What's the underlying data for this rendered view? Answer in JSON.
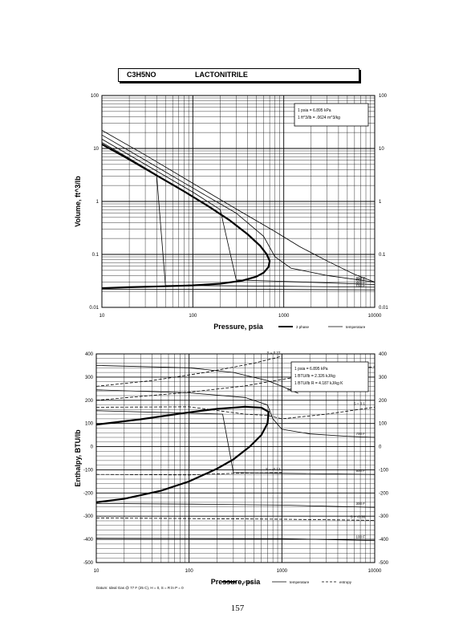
{
  "header": {
    "formula": "C3H5NO",
    "name": "LACTONITRILE"
  },
  "page_number": "157",
  "chart_data": [
    {
      "type": "line",
      "title": "",
      "xlabel": "Pressure,  psia",
      "ylabel": "Volume, ft^3/lb",
      "xscale": "log",
      "yscale": "log",
      "xlim": [
        10,
        10000
      ],
      "ylim": [
        0.01,
        100
      ],
      "x_ticks": [
        "10",
        "100",
        "1000",
        "10000"
      ],
      "y_ticks": [
        "0.01",
        "0.1",
        "1",
        "10",
        "100"
      ],
      "notes": [
        "1 psia  =  6.895 kPa",
        "1 ft^3/lb  =  .0624 m^3/kg"
      ],
      "legend": [
        "2 phase",
        "temperature"
      ],
      "legend_position": "bottom-right",
      "series": [
        {
          "name": "2 phase",
          "style": "thick",
          "points": [
            [
              10,
              12
            ],
            [
              20,
              6.2
            ],
            [
              40,
              3.1
            ],
            [
              80,
              1.55
            ],
            [
              150,
              0.8
            ],
            [
              250,
              0.45
            ],
            [
              400,
              0.24
            ],
            [
              550,
              0.145
            ],
            [
              650,
              0.1
            ],
            [
              700,
              0.075
            ],
            [
              680,
              0.058
            ],
            [
              600,
              0.045
            ],
            [
              500,
              0.038
            ],
            [
              350,
              0.032
            ],
            [
              200,
              0.028
            ],
            [
              100,
              0.026
            ],
            [
              50,
              0.025
            ],
            [
              20,
              0.024
            ],
            [
              10,
              0.023
            ]
          ]
        },
        {
          "label": "800 F",
          "style": "thin",
          "points": [
            [
              10,
              22
            ],
            [
              30,
              7.5
            ],
            [
              100,
              2.2
            ],
            [
              300,
              0.72
            ],
            [
              800,
              0.27
            ],
            [
              1500,
              0.14
            ],
            [
              3000,
              0.075
            ],
            [
              6000,
              0.042
            ],
            [
              10000,
              0.03
            ]
          ]
        },
        {
          "label": "700 F",
          "style": "thin",
          "points": [
            [
              10,
              18
            ],
            [
              30,
              6
            ],
            [
              100,
              1.8
            ],
            [
              300,
              0.6
            ],
            [
              600,
              0.22
            ],
            [
              800,
              0.09
            ],
            [
              1200,
              0.055
            ],
            [
              3000,
              0.04
            ],
            [
              10000,
              0.03
            ]
          ]
        },
        {
          "label": "500 F",
          "style": "thin",
          "points": [
            [
              10,
              15
            ],
            [
              30,
              5
            ],
            [
              100,
              1.5
            ],
            [
              200,
              0.7
            ],
            [
              300,
              0.033
            ],
            [
              1000,
              0.031
            ],
            [
              10000,
              0.027
            ]
          ]
        },
        {
          "label": "300 F",
          "style": "thin",
          "points": [
            [
              10,
              13
            ],
            [
              20,
              6.5
            ],
            [
              40,
              3.2
            ],
            [
              50,
              0.026
            ],
            [
              1000,
              0.025
            ],
            [
              10000,
              0.024
            ]
          ]
        },
        {
          "label": "100 F",
          "style": "thin",
          "points": [
            [
              10,
              0.022
            ],
            [
              1000,
              0.0218
            ],
            [
              10000,
              0.0215
            ]
          ]
        }
      ]
    },
    {
      "type": "line",
      "title": "",
      "xlabel": "Pressure,  psia",
      "ylabel": "Enthalpy, BTU/lb",
      "xscale": "log",
      "yscale": "linear",
      "xlim": [
        10,
        10000
      ],
      "ylim": [
        -500,
        400
      ],
      "x_ticks": [
        "10",
        "100",
        "1000",
        "10000"
      ],
      "y_ticks": [
        "-500",
        "-400",
        "-300",
        "-200",
        "-100",
        "0",
        "100",
        "200",
        "300",
        "400"
      ],
      "notes": [
        "1 psia  =  6.895 kPa",
        "1 BTU/lb  =  2.326 kJ/kg",
        "1 BTU/lb R  =  4.187 kJ/kg K"
      ],
      "footnote": "Datum: Ideal Gas @ 77 F (25 C),  H = 0,  S = R ln P = 0",
      "legend": [
        "2 phase",
        "temperature",
        "entropy"
      ],
      "legend_position": "bottom-right",
      "series": [
        {
          "name": "2 phase",
          "style": "thick",
          "points": [
            [
              10,
              95
            ],
            [
              30,
              118
            ],
            [
              100,
              148
            ],
            [
              200,
              163
            ],
            [
              400,
              172
            ],
            [
              600,
              168
            ],
            [
              720,
              150
            ],
            [
              700,
              100
            ],
            [
              600,
              50
            ],
            [
              450,
              0
            ],
            [
              300,
              -55
            ],
            [
              200,
              -95
            ],
            [
              100,
              -150
            ],
            [
              50,
              -190
            ],
            [
              20,
              -225
            ],
            [
              10,
              -240
            ]
          ]
        },
        {
          "label": "900 F",
          "style": "thin",
          "points": [
            [
              10,
              350
            ],
            [
              100,
              340
            ],
            [
              300,
              320
            ],
            [
              700,
              285
            ],
            [
              1000,
              260
            ],
            [
              1500,
              230
            ]
          ]
        },
        {
          "label": "700 F",
          "style": "thin",
          "points": [
            [
              10,
              245
            ],
            [
              100,
              232
            ],
            [
              400,
              212
            ],
            [
              700,
              180
            ],
            [
              800,
              120
            ],
            [
              1000,
              75
            ],
            [
              2000,
              55
            ],
            [
              5000,
              45
            ],
            [
              10000,
              40
            ]
          ]
        },
        {
          "label": "500 F",
          "style": "thin",
          "points": [
            [
              10,
              155
            ],
            [
              100,
              145
            ],
            [
              230,
              140
            ],
            [
              300,
              -112
            ],
            [
              1000,
              -115
            ],
            [
              10000,
              -120
            ]
          ]
        },
        {
          "label": "300 F",
          "style": "thin",
          "points": [
            [
              10,
              -245
            ],
            [
              100,
              -248
            ],
            [
              1000,
              -252
            ],
            [
              10000,
              -262
            ]
          ]
        },
        {
          "label": "100 F",
          "style": "thin",
          "points": [
            [
              10,
              -395
            ],
            [
              1000,
              -397
            ],
            [
              10000,
              -405
            ]
          ]
        },
        {
          "label": "S = 0.27",
          "style": "dashed",
          "points": [
            [
              10,
              260
            ],
            [
              40,
              285
            ],
            [
              150,
              320
            ],
            [
              500,
              360
            ],
            [
              1000,
              390
            ]
          ]
        },
        {
          "label": "S = 0.14",
          "style": "dashed",
          "points": [
            [
              10,
              200
            ],
            [
              100,
              235
            ],
            [
              400,
              262
            ],
            [
              1000,
              290
            ],
            [
              3000,
              320
            ],
            [
              10000,
              345
            ]
          ]
        },
        {
          "label": "S = 0.1",
          "style": "dashed",
          "points": [
            [
              10,
              170
            ],
            [
              100,
              172
            ],
            [
              400,
              140
            ],
            [
              700,
              135
            ],
            [
              1000,
              120
            ],
            [
              3000,
              140
            ],
            [
              10000,
              170
            ]
          ]
        },
        {
          "label": "S = -0.12",
          "style": "dashed",
          "points": [
            [
              10,
              -120
            ],
            [
              100,
              -122
            ],
            [
              300,
              -115
            ],
            [
              1000,
              -112
            ]
          ]
        },
        {
          "label": "S = -0.36",
          "style": "dashed",
          "points": [
            [
              10,
              -308
            ],
            [
              100,
              -310
            ],
            [
              1000,
              -313
            ],
            [
              10000,
              -318
            ]
          ]
        }
      ]
    }
  ]
}
